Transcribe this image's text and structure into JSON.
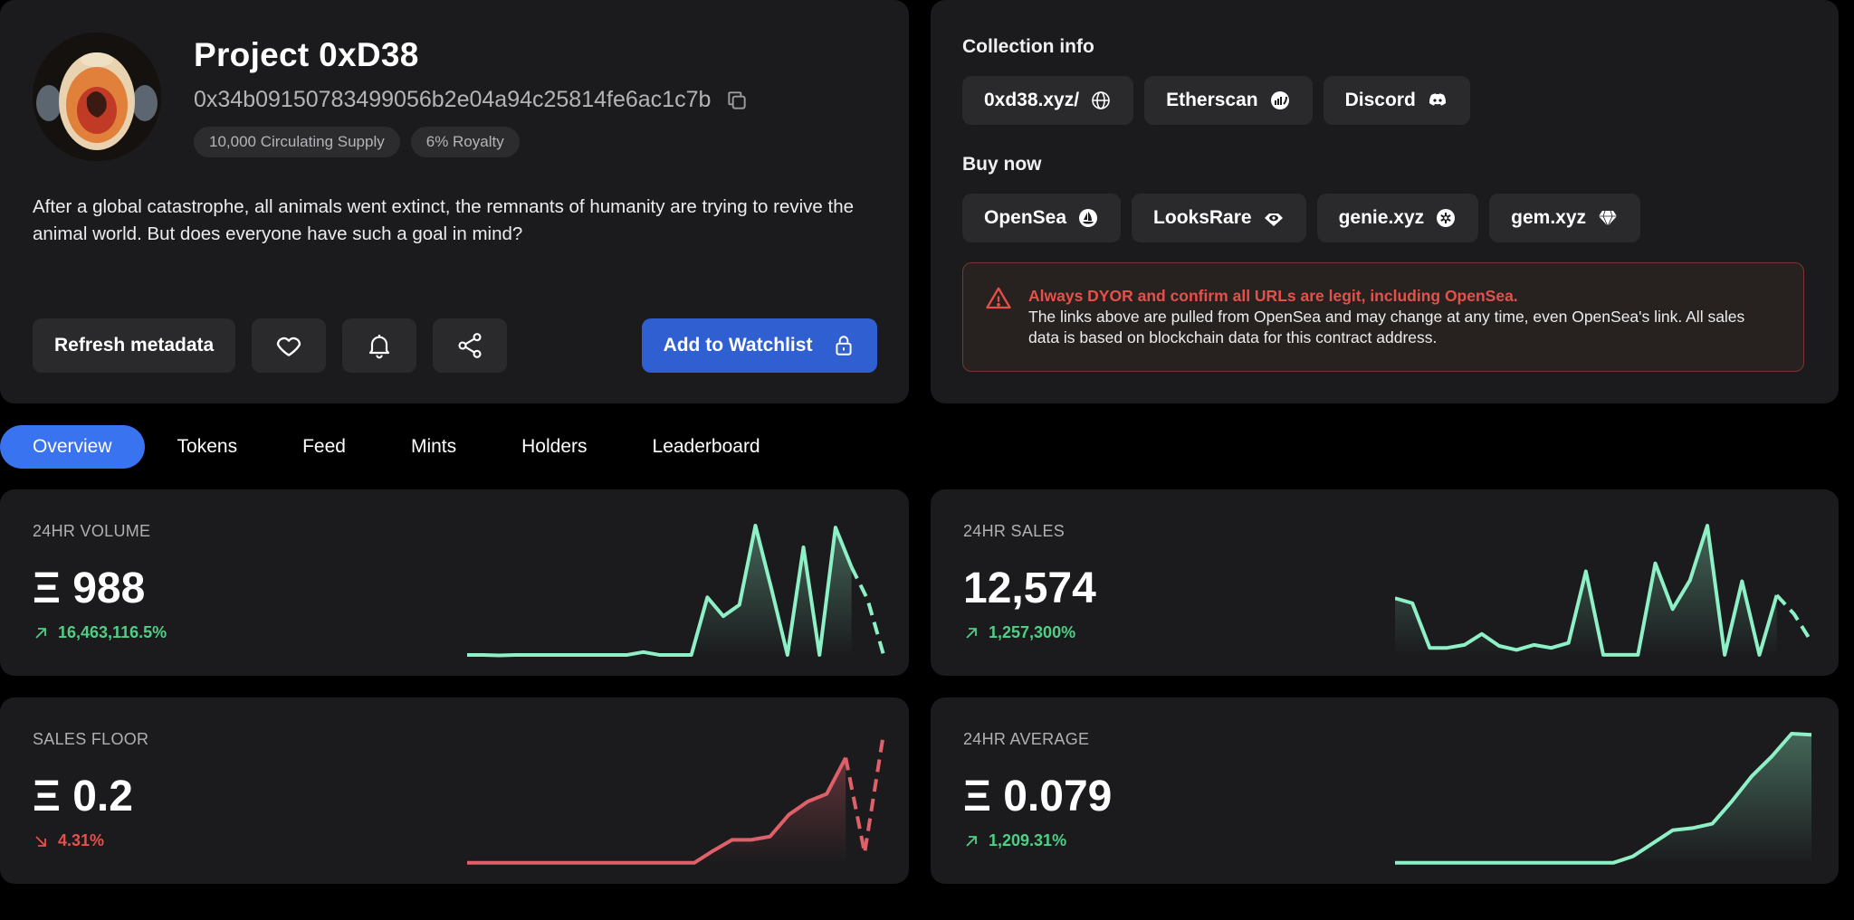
{
  "collection": {
    "name": "Project 0xD38",
    "address": "0x34b09150783499056b2e04a94c25814fe6ac1c7b",
    "pills": [
      "10,000 Circulating Supply",
      "6% Royalty"
    ],
    "description": "After a global catastrophe, all animals went extinct, the remnants of humanity are trying to revive the animal world. But does everyone have such a goal in mind?"
  },
  "actions": {
    "refresh_label": "Refresh metadata",
    "watchlist_label": "Add to Watchlist",
    "icons": [
      "heart-icon",
      "bell-icon",
      "share-icon",
      "lock-icon"
    ]
  },
  "info": {
    "collection_title": "Collection info",
    "links": [
      {
        "label": "0xd38.xyz/",
        "icon": "globe-icon"
      },
      {
        "label": "Etherscan",
        "icon": "etherscan-icon"
      },
      {
        "label": "Discord",
        "icon": "discord-icon"
      }
    ],
    "buy_title": "Buy now",
    "markets": [
      {
        "label": "OpenSea",
        "icon": "opensea-icon"
      },
      {
        "label": "LooksRare",
        "icon": "looksrare-icon"
      },
      {
        "label": "genie.xyz",
        "icon": "genie-icon"
      },
      {
        "label": "gem.xyz",
        "icon": "gem-icon"
      }
    ],
    "warning_title": "Always DYOR and confirm all URLs are legit, including OpenSea.",
    "warning_body": "The links above are pulled from OpenSea and may change at any time, even OpenSea's link. All sales data is based on blockchain data for this contract address."
  },
  "tabs": [
    "Overview",
    "Tokens",
    "Feed",
    "Mints",
    "Holders",
    "Leaderboard"
  ],
  "active_tab": "Overview",
  "colors": {
    "accent": "#3a73f0",
    "up": "#4fcf85",
    "down": "#e5504b",
    "spark_green": "#8ef0c6",
    "spark_red": "#e0606a"
  },
  "stats": {
    "volume": {
      "label": "24HR VOLUME",
      "value": "Ξ 988",
      "change": "16,463,116.5%",
      "direction": "up",
      "series": [
        1,
        1,
        0.5,
        1,
        1,
        1,
        1,
        1,
        1,
        1,
        1,
        4,
        1,
        1,
        1,
        62,
        42,
        54,
        138,
        71,
        1,
        115,
        1,
        136,
        94,
        60,
        1
      ],
      "dashed_tail": 2
    },
    "sales": {
      "label": "24HR SALES",
      "value": "12,574",
      "change": "1,257,300%",
      "direction": "up",
      "series": [
        58,
        53,
        8,
        8,
        11,
        22,
        10,
        6,
        11,
        8,
        13,
        85,
        1,
        1,
        1,
        93,
        47,
        76,
        131,
        1,
        75,
        1,
        61,
        42,
        14
      ],
      "dashed_tail": 2
    },
    "floor": {
      "label": "SALES FLOOR",
      "value": "Ξ 0.2",
      "change": "4.31%",
      "direction": "down",
      "series": [
        1,
        1,
        1,
        1,
        1,
        1,
        1,
        1,
        1,
        1,
        1,
        1,
        1,
        12,
        22,
        22,
        25,
        45,
        57,
        64,
        97,
        10,
        119
      ],
      "dashed_tail": 2
    },
    "average": {
      "label": "24HR AVERAGE",
      "value": "Ξ 0.079",
      "change": "1,209.31%",
      "direction": "up",
      "series": [
        1,
        1,
        1,
        1,
        1,
        1,
        1,
        1,
        1,
        1,
        1,
        1,
        7,
        19,
        31,
        33,
        37,
        58,
        81,
        99,
        120,
        119
      ],
      "dashed_tail": 0
    }
  }
}
